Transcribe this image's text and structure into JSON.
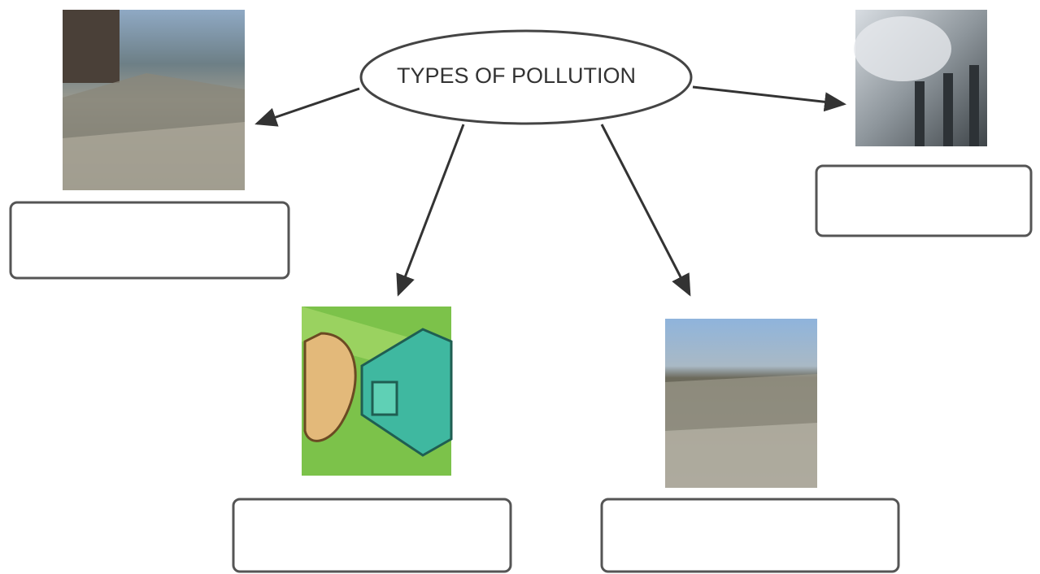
{
  "title": "TYPES OF POLLUTION"
}
